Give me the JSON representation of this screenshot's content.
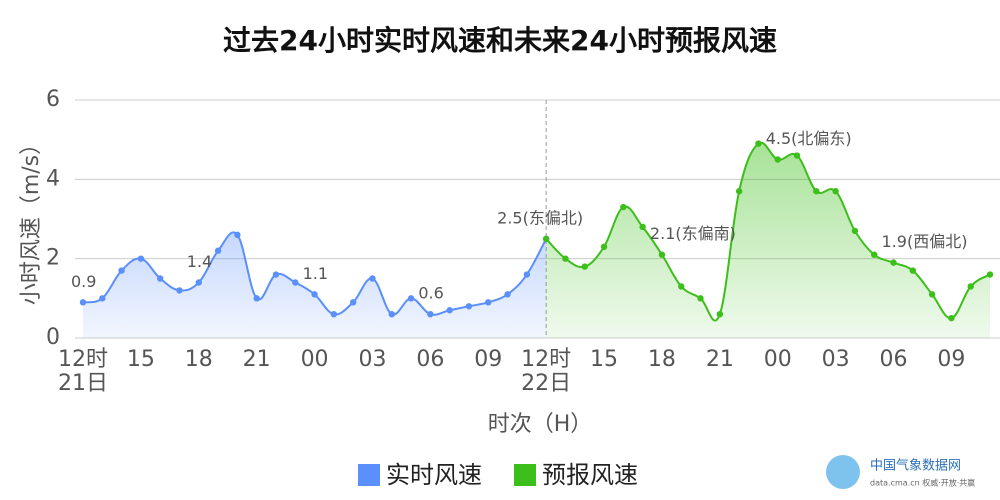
{
  "chart_data": {
    "type": "line",
    "title": "过去24小时实时风速和未来24小时预报风速",
    "ylabel": "小时风速（m/s）",
    "xlabel": "时次（H）",
    "source": "中国气象数据网",
    "source_sub": "data.cma.cn 权威·开放·共赢",
    "ylim": [
      0,
      6
    ],
    "yticks": [
      0,
      2,
      4,
      6
    ],
    "grid": true,
    "legend": "bottom",
    "categories": [
      "12时\n21日",
      null,
      null,
      "15",
      null,
      null,
      "18",
      null,
      null,
      "21",
      null,
      null,
      "00",
      null,
      null,
      "03",
      null,
      null,
      "06",
      null,
      null,
      "09",
      null,
      null,
      "12时\n22日",
      null,
      null,
      "15",
      null,
      null,
      "18",
      null,
      null,
      "21",
      null,
      null,
      "00",
      null,
      null,
      "03",
      null,
      null,
      "06",
      null,
      null,
      "09",
      null,
      null
    ],
    "series": [
      {
        "name": "实时风速",
        "color": "#5b8ff9",
        "values": [
          0.9,
          1.0,
          1.7,
          2.0,
          1.5,
          1.2,
          1.4,
          2.2,
          2.6,
          1.0,
          1.6,
          1.4,
          1.1,
          0.6,
          0.9,
          1.5,
          0.6,
          1.0,
          0.6,
          0.7,
          0.8,
          0.9,
          1.1,
          1.6,
          2.5,
          null,
          null,
          null,
          null,
          null,
          null,
          null,
          null,
          null,
          null,
          null,
          null,
          null,
          null,
          null,
          null,
          null,
          null,
          null,
          null,
          null,
          null,
          null
        ],
        "value_labels": [
          "0.9",
          null,
          null,
          null,
          null,
          null,
          "1.4",
          null,
          null,
          null,
          null,
          null,
          "1.1",
          null,
          null,
          null,
          null,
          null,
          "0.6",
          null,
          null,
          null,
          null,
          null,
          null,
          null,
          null,
          null,
          null,
          null,
          null,
          null,
          null,
          null,
          null,
          null,
          null,
          null,
          null,
          null,
          null,
          null,
          null,
          null,
          null,
          null,
          null,
          null
        ]
      },
      {
        "name": "预报风速",
        "color": "#3cbf1a",
        "values": [
          null,
          null,
          null,
          null,
          null,
          null,
          null,
          null,
          null,
          null,
          null,
          null,
          null,
          null,
          null,
          null,
          null,
          null,
          null,
          null,
          null,
          null,
          null,
          null,
          2.5,
          2.0,
          1.8,
          2.3,
          3.3,
          2.8,
          2.1,
          1.3,
          1.0,
          0.6,
          3.7,
          4.9,
          4.5,
          4.6,
          3.7,
          3.7,
          2.7,
          2.1,
          1.9,
          1.7,
          1.1,
          0.5,
          1.3,
          1.6
        ],
        "value_labels": [
          null,
          null,
          null,
          null,
          null,
          null,
          null,
          null,
          null,
          null,
          null,
          null,
          null,
          null,
          null,
          null,
          null,
          null,
          null,
          null,
          null,
          null,
          null,
          null,
          "2.5(东偏北)",
          null,
          null,
          null,
          null,
          null,
          "2.1(东偏南)",
          null,
          null,
          null,
          null,
          null,
          "4.5(北偏东)",
          null,
          null,
          null,
          null,
          null,
          "1.9(西偏北)",
          null,
          null,
          null,
          null,
          null
        ]
      }
    ]
  }
}
